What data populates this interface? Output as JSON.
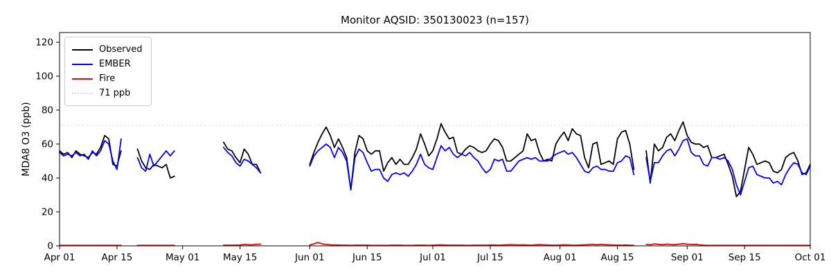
{
  "title": "Monitor AQSID: 350130023 (n=157)",
  "legend": {
    "items": [
      {
        "label": "Observed",
        "color": "#000000",
        "line_style": "solid"
      },
      {
        "label": "EMBER",
        "color": "#0000ff",
        "line_style": "solid"
      },
      {
        "label": "Fire",
        "color": "#ff0000",
        "line_style": "solid"
      },
      {
        "label": "71 ppb",
        "color": "#d9d9d9",
        "line_style": "dotted"
      }
    ],
    "position": "upper left"
  },
  "chart_data": {
    "type": "line",
    "title": "Monitor AQSID: 350130023 (n=157)",
    "xlabel": "",
    "ylabel": "MDA8 O3 (ppb)",
    "monitor_aqsid": "350130023",
    "n_points": 157,
    "grid": false,
    "ylim": [
      0,
      125.7
    ],
    "y_ticks": [
      0,
      20,
      40,
      60,
      80,
      100,
      120
    ],
    "x_range_days": 183,
    "x_start": "Apr 01",
    "x_end": "Oct 01",
    "x_ticks": [
      {
        "label": "Apr 01",
        "day": 0
      },
      {
        "label": "Apr 15",
        "day": 14
      },
      {
        "label": "May 01",
        "day": 30
      },
      {
        "label": "May 15",
        "day": 44
      },
      {
        "label": "Jun 01",
        "day": 61
      },
      {
        "label": "Jun 15",
        "day": 75
      },
      {
        "label": "Jul 01",
        "day": 91
      },
      {
        "label": "Jul 15",
        "day": 105
      },
      {
        "label": "Aug 01",
        "day": 122
      },
      {
        "label": "Aug 15",
        "day": 136
      },
      {
        "label": "Sep 01",
        "day": 153
      },
      {
        "label": "Sep 15",
        "day": 167
      },
      {
        "label": "Oct 01",
        "day": 183
      }
    ],
    "threshold": {
      "value": 71,
      "label": "71 ppb",
      "color": "#d9d9d9",
      "style": "dotted"
    },
    "data_gaps": [
      "Apr 17-19",
      "Apr 30-May 10",
      "May 21-31",
      "Aug 20-21"
    ],
    "series": [
      {
        "name": "Observed",
        "color": "#000000",
        "values": [
          56,
          54,
          55,
          52,
          56,
          54,
          53,
          52,
          55,
          54,
          58,
          65,
          63,
          48,
          47,
          56,
          null,
          null,
          null,
          57,
          50,
          46,
          45,
          48,
          47,
          46,
          48,
          40,
          41,
          null,
          null,
          null,
          null,
          null,
          null,
          null,
          null,
          null,
          null,
          null,
          61,
          57,
          56,
          52,
          49,
          57,
          54,
          48,
          48,
          43,
          null,
          null,
          null,
          null,
          null,
          null,
          null,
          null,
          null,
          null,
          null,
          48,
          55,
          61,
          66,
          70,
          65,
          58,
          63,
          58,
          52,
          33,
          55,
          65,
          63,
          56,
          54,
          56,
          56,
          44,
          49,
          52,
          48,
          51,
          48,
          48,
          52,
          57,
          66,
          60,
          53,
          56,
          63,
          72,
          67,
          63,
          64,
          55,
          54,
          57,
          59,
          58,
          56,
          55,
          56,
          60,
          63,
          62,
          58,
          50,
          50,
          52,
          54,
          56,
          66,
          62,
          63,
          55,
          50,
          51,
          50,
          60,
          64,
          67,
          62,
          69,
          66,
          65,
          52,
          46,
          60,
          61,
          48,
          49,
          50,
          48,
          63,
          67,
          68,
          60,
          45,
          null,
          null,
          56,
          37,
          60,
          56,
          58,
          64,
          66,
          62,
          68,
          73,
          65,
          61,
          60,
          60,
          58,
          59,
          52,
          52,
          53,
          54,
          48,
          41,
          29,
          32,
          45,
          58,
          54,
          48,
          49,
          50,
          49,
          44,
          43,
          45,
          52,
          54,
          55,
          50,
          42,
          43,
          48
        ]
      },
      {
        "name": "EMBER",
        "color": "#0000ff",
        "values": [
          55,
          53,
          54,
          53,
          55,
          53,
          54,
          51,
          56,
          53,
          56,
          62,
          60,
          50,
          45,
          63,
          null,
          null,
          null,
          52,
          46,
          44,
          54,
          47,
          50,
          53,
          56,
          53,
          56,
          null,
          null,
          null,
          null,
          null,
          null,
          null,
          null,
          null,
          null,
          null,
          58,
          55,
          53,
          49,
          47,
          51,
          50,
          48,
          46,
          43,
          null,
          null,
          null,
          null,
          null,
          null,
          null,
          null,
          null,
          null,
          null,
          47,
          53,
          56,
          58,
          60,
          58,
          52,
          58,
          55,
          50,
          33,
          52,
          57,
          55,
          49,
          44,
          45,
          45,
          40,
          38,
          42,
          43,
          42,
          43,
          41,
          44,
          48,
          54,
          48,
          46,
          45,
          52,
          59,
          56,
          58,
          54,
          52,
          54,
          53,
          55,
          52,
          50,
          46,
          43,
          45,
          51,
          50,
          51,
          44,
          44,
          47,
          50,
          51,
          52,
          51,
          52,
          50,
          50,
          50,
          52,
          54,
          55,
          56,
          54,
          55,
          52,
          48,
          44,
          43,
          46,
          47,
          45,
          45,
          44,
          44,
          49,
          50,
          53,
          52,
          42,
          null,
          null,
          52,
          38,
          49,
          49,
          53,
          56,
          57,
          53,
          57,
          62,
          63,
          55,
          53,
          53,
          48,
          47,
          52,
          52,
          51,
          52,
          50,
          45,
          36,
          30,
          38,
          46,
          47,
          42,
          41,
          40,
          40,
          37,
          38,
          36,
          42,
          46,
          49,
          48,
          43,
          42,
          47
        ]
      },
      {
        "name": "Fire",
        "color": "#ff0000",
        "values": [
          0.3,
          0.3,
          0.3,
          0.3,
          0.3,
          0.3,
          0.3,
          0.3,
          0.3,
          0.3,
          0.3,
          0.3,
          0.3,
          0.3,
          0.3,
          0.3,
          null,
          null,
          null,
          0.3,
          0.3,
          0.3,
          0.3,
          0.3,
          0.3,
          0.3,
          0.3,
          0.3,
          0.3,
          null,
          null,
          null,
          null,
          null,
          null,
          null,
          null,
          null,
          null,
          null,
          0.4,
          0.4,
          0.4,
          0.4,
          0.5,
          0.8,
          0.7,
          0.6,
          0.9,
          1.0,
          null,
          null,
          null,
          null,
          null,
          null,
          null,
          null,
          null,
          null,
          null,
          0.5,
          1.2,
          2.0,
          1.2,
          0.8,
          0.6,
          0.5,
          0.5,
          0.4,
          0.4,
          0.3,
          0.4,
          0.4,
          0.4,
          0.4,
          0.3,
          0.3,
          0.3,
          0.3,
          0.3,
          0.4,
          0.4,
          0.4,
          0.3,
          0.3,
          0.3,
          0.4,
          0.4,
          0.4,
          0.3,
          0.4,
          0.5,
          0.6,
          0.5,
          0.4,
          0.4,
          0.4,
          0.4,
          0.3,
          0.3,
          0.4,
          0.4,
          0.4,
          0.4,
          0.5,
          0.5,
          0.4,
          0.5,
          0.6,
          0.7,
          0.6,
          0.5,
          0.6,
          0.5,
          0.4,
          0.6,
          0.7,
          0.6,
          0.5,
          0.4,
          0.4,
          0.5,
          0.6,
          0.5,
          0.4,
          0.4,
          0.5,
          0.6,
          0.7,
          0.8,
          0.7,
          0.8,
          0.7,
          0.6,
          0.5,
          0.4,
          0.4,
          0.5,
          0.4,
          0.3,
          null,
          null,
          0.8,
          0.6,
          1.2,
          0.9,
          0.7,
          1.0,
          0.8,
          0.7,
          1.0,
          1.3,
          1.0,
          0.8,
          0.9,
          0.6,
          0.4,
          0.3,
          0.3,
          0.3,
          0.3,
          0.3,
          0.3,
          0.3,
          0.3,
          0.3,
          0.3,
          0.3,
          0.3,
          0.3,
          0.3,
          0.3,
          0.3,
          0.3,
          0.3,
          0.3,
          0.3,
          0.3,
          0.3,
          0.3,
          0.3,
          0.3,
          0.3
        ]
      }
    ],
    "legend_position": "upper left"
  }
}
